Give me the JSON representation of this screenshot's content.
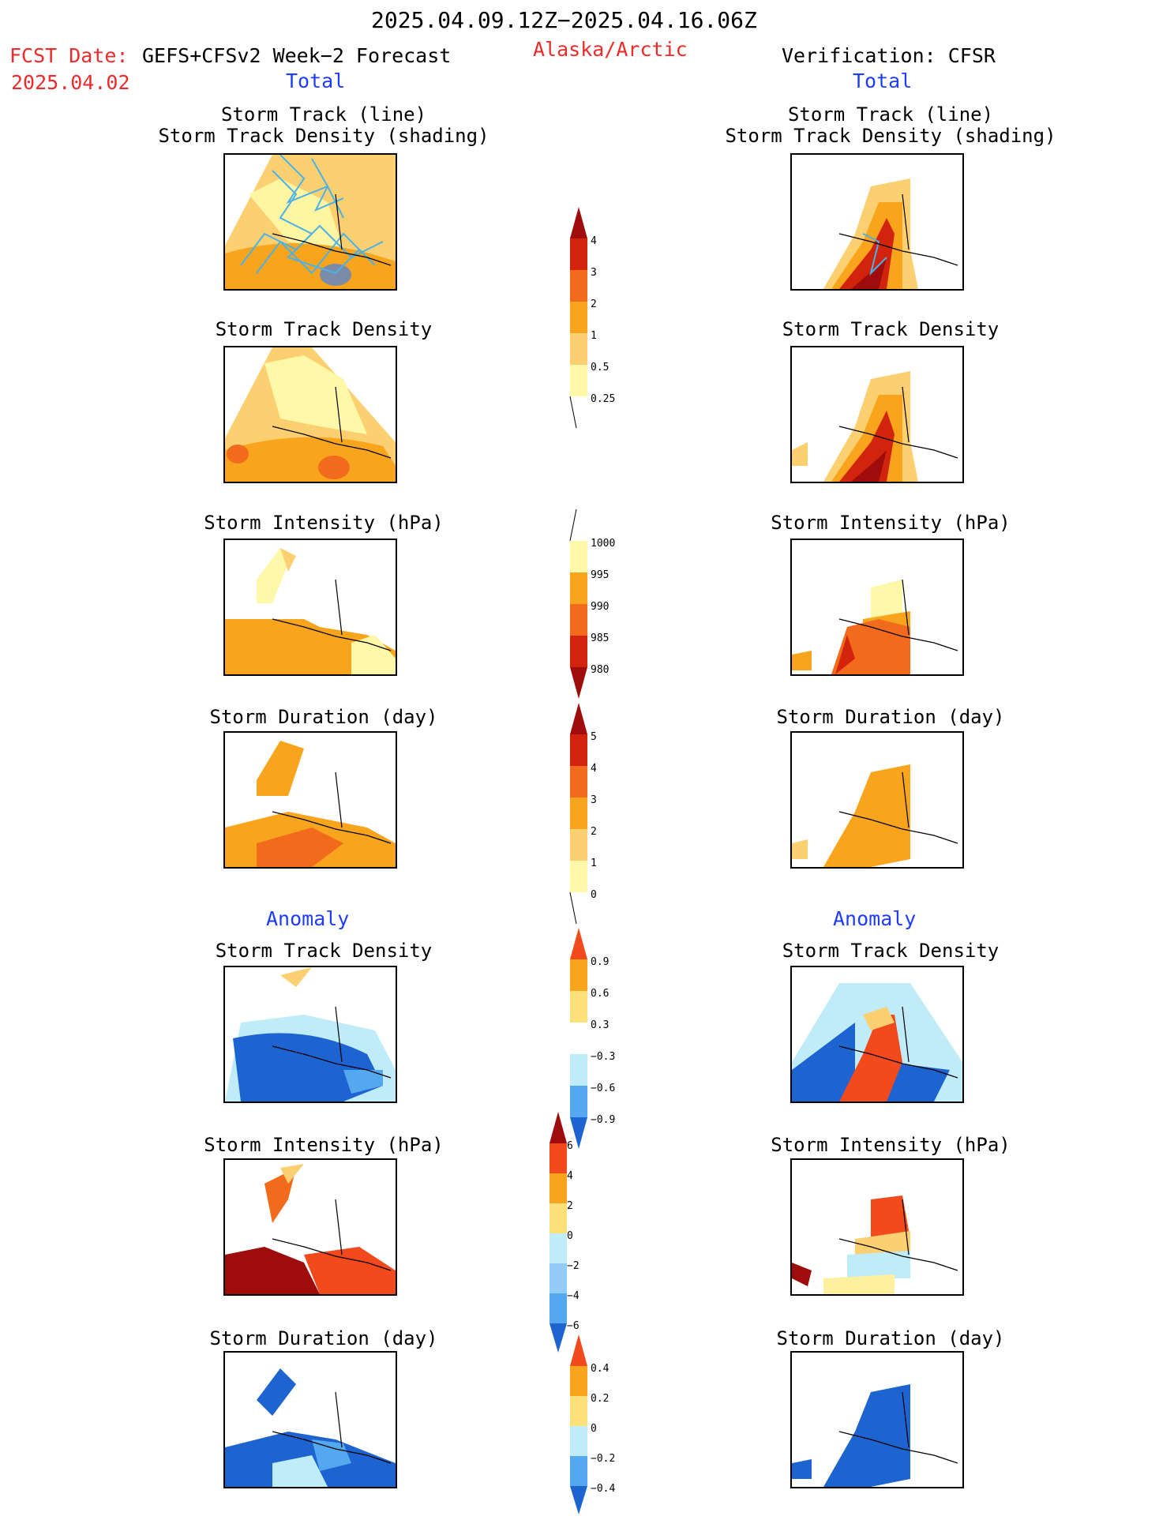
{
  "header": {
    "period": "2025.04.09.12Z−2025.04.16.06Z",
    "fcst_label": "FCST Date:",
    "fcst_model": "GEFS+CFSv2 Week−2 Forecast",
    "fcst_date": "2025.04.02",
    "region": "Alaska/Arctic",
    "verification": "Verification: CFSR"
  },
  "sections": {
    "total_left": "Total",
    "total_right": "Total",
    "anomaly_left": "Anomaly",
    "anomaly_right": "Anomaly"
  },
  "panel_titles": {
    "track_line": "Storm Track (line)",
    "track_shading": "Storm Track Density (shading)",
    "density": "Storm Track Density",
    "intensity": "Storm Intensity (hPa)",
    "duration": "Storm Duration (day)"
  },
  "colorbars": {
    "density_total": [
      "4",
      "3",
      "2",
      "1",
      "0.5",
      "0.25"
    ],
    "intensity_total": [
      "1000",
      "995",
      "990",
      "985",
      "980"
    ],
    "duration_total": [
      "5",
      "4",
      "3",
      "2",
      "1",
      "0"
    ],
    "density_anom": [
      "0.9",
      "0.6",
      "0.3",
      "−0.3",
      "−0.6",
      "−0.9"
    ],
    "intensity_anom": [
      "6",
      "4",
      "2",
      "0",
      "−2",
      "−4",
      "−6"
    ],
    "duration_anom": [
      "0.4",
      "0.2",
      "0",
      "−0.2",
      "−0.4"
    ]
  },
  "colors": {
    "very_light_yellow": "#fff8a8",
    "light_orange": "#fcd070",
    "orange": "#f8a41c",
    "dark_orange": "#f26a1c",
    "red": "#d2240c",
    "dark_red": "#9e0c0c",
    "light_blue": "#c0ecfa",
    "mid_blue": "#54a8f0",
    "blue": "#1e64d0",
    "track_line": "#4ab2e8"
  }
}
